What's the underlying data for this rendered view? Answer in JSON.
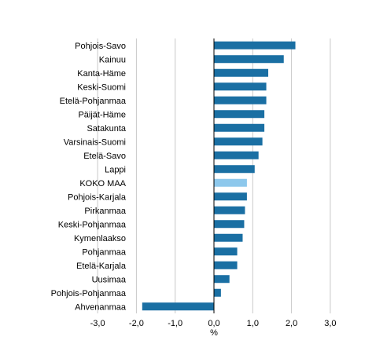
{
  "chart_data": {
    "type": "bar",
    "orientation": "horizontal",
    "categories": [
      "Pohjois-Savo",
      "Kainuu",
      "Kanta-Häme",
      "Keski-Suomi",
      "Etelä-Pohjanmaa",
      "Päijät-Häme",
      "Satakunta",
      "Varsinais-Suomi",
      "Etelä-Savo",
      "Lappi",
      "KOKO MAA",
      "Pohjois-Karjala",
      "Pirkanmaa",
      "Keski-Pohjanmaa",
      "Kymenlaakso",
      "Pohjanmaa",
      "Etelä-Karjala",
      "Uusimaa",
      "Pohjois-Pohjanmaa",
      "Ahvenanmaa"
    ],
    "values": [
      2.1,
      1.8,
      1.4,
      1.35,
      1.35,
      1.3,
      1.3,
      1.25,
      1.15,
      1.05,
      0.85,
      0.85,
      0.8,
      0.78,
      0.74,
      0.6,
      0.6,
      0.4,
      0.18,
      -1.85
    ],
    "highlight_category": "KOKO MAA",
    "colors": {
      "bar": "#1a6fa3",
      "highlight": "#8dc8ec",
      "grid": "#c8c8c8",
      "axis": "#000000"
    },
    "xlabel": "%",
    "ylabel": "",
    "xlim": [
      -3,
      3.4
    ],
    "xticks": [
      -3,
      -2,
      -1,
      0,
      1,
      2,
      3
    ],
    "xtick_labels": [
      "-3,0",
      "-2,0",
      "-1,0",
      "0,0",
      "1,0",
      "2,0",
      "3,0"
    ],
    "grid": true,
    "legend": "none"
  }
}
